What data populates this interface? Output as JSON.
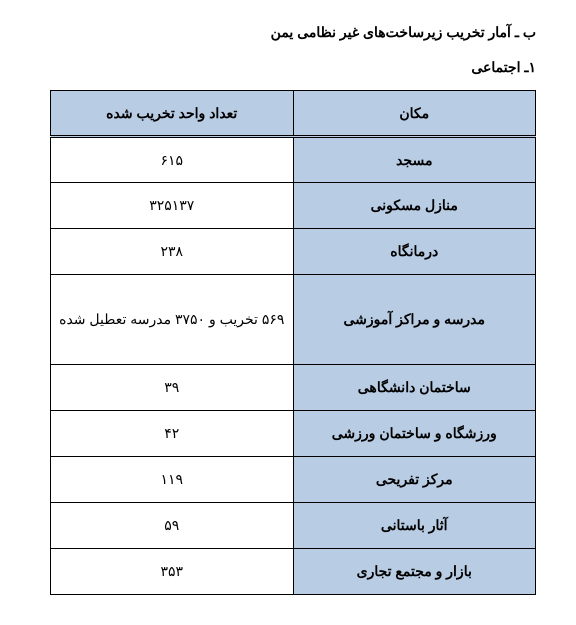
{
  "title": "ب ـ آمار تخریب زیرساخت‌های غیر نظامی یمن",
  "subtitle": "۱ـ اجتماعی",
  "table": {
    "headers": {
      "place": "مکان",
      "count": "تعداد واحد تخریب شده"
    },
    "rows": [
      {
        "place": "مسجد",
        "count": "۶۱۵"
      },
      {
        "place": "منازل مسکونی",
        "count": "۳۲۵۱۳۷"
      },
      {
        "place": "درمانگاه",
        "count": "۲۳۸"
      },
      {
        "place": "مدرسه و مراکز آموزشی",
        "count": "۵۶۹ تخریب و  ۳۷۵۰ مدرسه تعطیل شده",
        "tall": true
      },
      {
        "place": "ساختمان دانشگاهی",
        "count": "۳۹"
      },
      {
        "place": "ورزشگاه و ساختمان ورزشی",
        "count": "۴۲"
      },
      {
        "place": "مرکز تفریحی",
        "count": "۱۱۹"
      },
      {
        "place": "آثار باستانی",
        "count": "۵۹"
      },
      {
        "place": "بازار و مجتمع تجاری",
        "count": "۳۵۳"
      }
    ]
  },
  "colors": {
    "header_bg": "#b8cce4",
    "border": "#000000",
    "page_bg": "#ffffff",
    "text": "#000000"
  }
}
